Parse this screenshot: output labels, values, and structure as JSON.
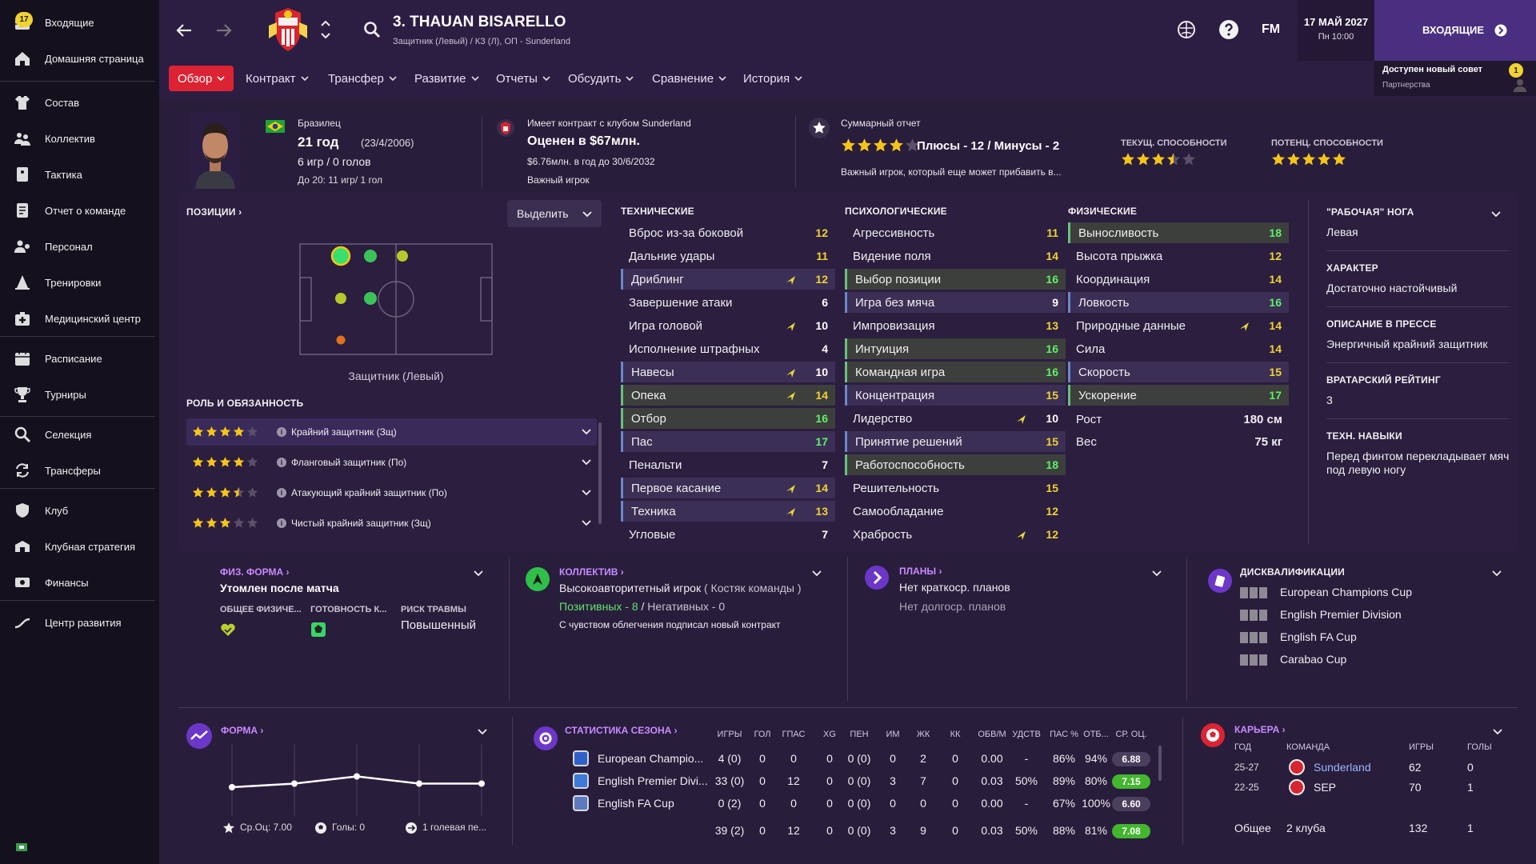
{
  "sidebar": {
    "items": [
      {
        "label": "Входящие",
        "badge": "17"
      },
      {
        "label": "Домашняя страница"
      },
      {
        "label": "Состав"
      },
      {
        "label": "Коллектив"
      },
      {
        "label": "Тактика"
      },
      {
        "label": "Отчет о команде"
      },
      {
        "label": "Персонал"
      },
      {
        "label": "Тренировки"
      },
      {
        "label": "Медицинский центр"
      },
      {
        "label": "Расписание"
      },
      {
        "label": "Турниры"
      },
      {
        "label": "Селекция"
      },
      {
        "label": "Трансферы"
      },
      {
        "label": "Клуб"
      },
      {
        "label": "Клубная стратегия"
      },
      {
        "label": "Финансы"
      },
      {
        "label": "Центр развития"
      }
    ]
  },
  "header": {
    "player_name": "3. THAUAN BISARELLO",
    "player_sub": "Защитник (Левый) / КЗ (Л), ОП - Sunderland",
    "date": "17 МАЙ 2027",
    "day_time": "Пн 10:00",
    "inbox_button": "ВХОДЯЩИЕ",
    "fm_logo": "FM",
    "notice_title": "Доступен новый совет",
    "notice_sub": "Партнерства",
    "notice_badge": "1"
  },
  "tabs": [
    "Обзор",
    "Контракт",
    "Трансфер",
    "Развитие",
    "Отчеты",
    "Обсудить",
    "Сравнение",
    "История"
  ],
  "profile": {
    "nationality": "Бразилец",
    "age": "21 год",
    "dob": "(23/4/2006)",
    "apps": "6 игр / 0 голов",
    "u20": "До 20: 11 игр/ 1 гол",
    "contract_title": "Имеет контракт с клубом Sunderland",
    "value": "Оценен в $67млн.",
    "wage": "$6.76млн. в год до 30/6/2032",
    "status": "Важный игрок",
    "report_title": "Суммарный отчет",
    "pros_cons": "Плюсы - 12 / Минусы - 2",
    "report_text": "Важный игрок, который еще может прибавить в...",
    "ca_label": "ТЕКУЩ. СПОСОБНОСТИ",
    "pa_label": "ПОТЕНЦ. СПОСОБНОСТИ",
    "report_stars": 4,
    "ca_stars": 3.5,
    "pa_stars": 5
  },
  "positions": {
    "title": "ПОЗИЦИИ",
    "highlight_select": "Выделить",
    "position_label": "Защитник (Левый)",
    "roles_title": "РОЛЬ И ОБЯЗАННОСТЬ",
    "roles": [
      {
        "name": "Крайний защитник (Зщ)",
        "stars": 4
      },
      {
        "name": "Фланговый защитник (По)",
        "stars": 4
      },
      {
        "name": "Атакующий крайний защитник (По)",
        "stars": 3.5
      },
      {
        "name": "Чистый крайний защитник (Зщ)",
        "stars": 3
      }
    ]
  },
  "technical": {
    "title": "ТЕХНИЧЕСКИЕ",
    "rows": [
      {
        "name": "Вброс из-за боковой",
        "value": "12"
      },
      {
        "name": "Дальние удары",
        "value": "11"
      },
      {
        "name": "Дриблинг",
        "value": "12",
        "hl": "b",
        "arrow": true
      },
      {
        "name": "Завершение атаки",
        "value": "6"
      },
      {
        "name": "Игра головой",
        "value": "10",
        "arrow": true
      },
      {
        "name": "Исполнение штрафных",
        "value": "4"
      },
      {
        "name": "Навесы",
        "value": "10",
        "hl": "b",
        "arrow": true
      },
      {
        "name": "Опека",
        "value": "14",
        "hl": "g",
        "arrow": true
      },
      {
        "name": "Отбор",
        "value": "16",
        "hl": "g"
      },
      {
        "name": "Пас",
        "value": "17",
        "hl": "b"
      },
      {
        "name": "Пенальти",
        "value": "7"
      },
      {
        "name": "Первое касание",
        "value": "14",
        "hl": "b",
        "arrow": true
      },
      {
        "name": "Техника",
        "value": "13",
        "hl": "b",
        "arrow": true
      },
      {
        "name": "Угловые",
        "value": "7"
      }
    ]
  },
  "mental": {
    "title": "ПСИХОЛОГИЧЕСКИЕ",
    "rows": [
      {
        "name": "Агрессивность",
        "value": "11"
      },
      {
        "name": "Видение поля",
        "value": "14"
      },
      {
        "name": "Выбор позиции",
        "value": "16",
        "hl": "g"
      },
      {
        "name": "Игра без мяча",
        "value": "9",
        "hl": "b"
      },
      {
        "name": "Импровизация",
        "value": "13"
      },
      {
        "name": "Интуиция",
        "value": "16",
        "hl": "g"
      },
      {
        "name": "Командная игра",
        "value": "16",
        "hl": "g"
      },
      {
        "name": "Концентрация",
        "value": "15",
        "hl": "b"
      },
      {
        "name": "Лидерство",
        "value": "10",
        "arrow": true
      },
      {
        "name": "Принятие решений",
        "value": "15",
        "hl": "b"
      },
      {
        "name": "Работоспособность",
        "value": "18",
        "hl": "g"
      },
      {
        "name": "Решительность",
        "value": "15"
      },
      {
        "name": "Самообладание",
        "value": "12"
      },
      {
        "name": "Храбрость",
        "value": "12",
        "arrow": true
      }
    ]
  },
  "physical": {
    "title": "ФИЗИЧЕСКИЕ",
    "rows": [
      {
        "name": "Выносливость",
        "value": "18",
        "hl": "g"
      },
      {
        "name": "Высота прыжка",
        "value": "12"
      },
      {
        "name": "Координация",
        "value": "14"
      },
      {
        "name": "Ловкость",
        "value": "16",
        "hl": "b"
      },
      {
        "name": "Природные данные",
        "value": "14",
        "arrow": true
      },
      {
        "name": "Сила",
        "value": "14"
      },
      {
        "name": "Скорость",
        "value": "15",
        "hl": "b"
      },
      {
        "name": "Ускорение",
        "value": "17",
        "hl": "g"
      }
    ],
    "height_label": "Рост",
    "height": "180 см",
    "weight_label": "Вес",
    "weight": "75 кг"
  },
  "info": [
    {
      "label": "\"РАБОЧАЯ\" НОГА",
      "value": "Левая"
    },
    {
      "label": "ХАРАКТЕР",
      "value": "Достаточно настойчивый"
    },
    {
      "label": "ОПИСАНИЕ В ПРЕССЕ",
      "value": "Энергичный крайний защитник"
    },
    {
      "label": "ВРАТАРСКИЙ РЕЙТИНГ",
      "value": "3"
    },
    {
      "label": "ТЕХН. НАВЫКИ",
      "value": "Перед финтом перекладывает мяч под левую ногу"
    }
  ],
  "fitness": {
    "title": "ФИЗ. ФОРМА",
    "status": "Утомлен после матча",
    "l1": "ОБЩЕЕ ФИЗИЧЕ...",
    "l2": "ГОТОВНОСТЬ К...",
    "l3": "РИСК ТРАВМЫ",
    "risk": "Повышенный"
  },
  "squad": {
    "title": "КОЛЛЕКТИВ",
    "status": "Высокоавторитетный игрок",
    "role": "( Костяк команды )",
    "positive": "Позитивных - 8",
    "sep": "/",
    "negative": "Негативных - 0",
    "note": "С чувством облегчения подписал новый контракт"
  },
  "plans": {
    "title": "ПЛАНЫ",
    "short": "Нет краткоср. планов",
    "long": "Нет долгоср. планов"
  },
  "bans": {
    "title": "ДИСКВАЛИФИКАЦИИ",
    "items": [
      "European Champions Cup",
      "English Premier Division",
      "English FA Cup",
      "Carabao Cup"
    ]
  },
  "form": {
    "title": "ФОРМА",
    "avg": "Ср.Оц: 7.00",
    "goals": "Голы: 0",
    "assists": "1 голевая пе...",
    "values": [
      6.9,
      6.95,
      7.05,
      6.95,
      6.95
    ]
  },
  "season": {
    "title": "СТАТИСТИКА СЕЗОНА",
    "headers": [
      "ИГРЫ",
      "ГОЛ",
      "ГПАС",
      "XG",
      "ПЕН",
      "ИМ",
      "ЖК",
      "КК",
      "ОБВ/М",
      "УДСТВ",
      "ПАС %",
      "ОТБ...",
      "СР. ОЦ."
    ],
    "rows": [
      {
        "comp": "European Champio...",
        "cells": [
          "4 (0)",
          "0",
          "0",
          "0",
          "0 (0)",
          "0",
          "2",
          "0",
          "0.00",
          "-",
          "86%",
          "94%"
        ],
        "rating": "6.88"
      },
      {
        "comp": "English Premier Divi...",
        "cells": [
          "33 (0)",
          "0",
          "12",
          "0",
          "0 (0)",
          "3",
          "7",
          "0",
          "0.03",
          "50%",
          "89%",
          "80%"
        ],
        "rating": "7.15"
      },
      {
        "comp": "English FA Cup",
        "cells": [
          "0 (2)",
          "0",
          "0",
          "0",
          "0 (0)",
          "0",
          "0",
          "0",
          "0.00",
          "-",
          "67%",
          "100%"
        ],
        "rating": "6.60"
      }
    ],
    "total": {
      "cells": [
        "39 (2)",
        "0",
        "12",
        "0",
        "0 (0)",
        "3",
        "9",
        "0",
        "0.03",
        "50%",
        "88%",
        "81%"
      ],
      "rating": "7.08"
    }
  },
  "career": {
    "title": "КАРЬЕРА",
    "headers": [
      "ГОД",
      "КОМАНДА",
      "ИГРЫ",
      "ГОЛЫ"
    ],
    "rows": [
      {
        "year": "25-27",
        "team": "Sunderland",
        "apps": "62",
        "goals": "0"
      },
      {
        "year": "22-25",
        "team": "SEP",
        "apps": "70",
        "goals": "1"
      }
    ],
    "total_label": "Общее",
    "total_clubs": "2 клуба",
    "total_apps": "132",
    "total_goals": "1"
  },
  "colors": {
    "accent": "#dc2334",
    "purple": "#c88bff",
    "green": "#5ff06a",
    "yellow": "#f5c518"
  }
}
